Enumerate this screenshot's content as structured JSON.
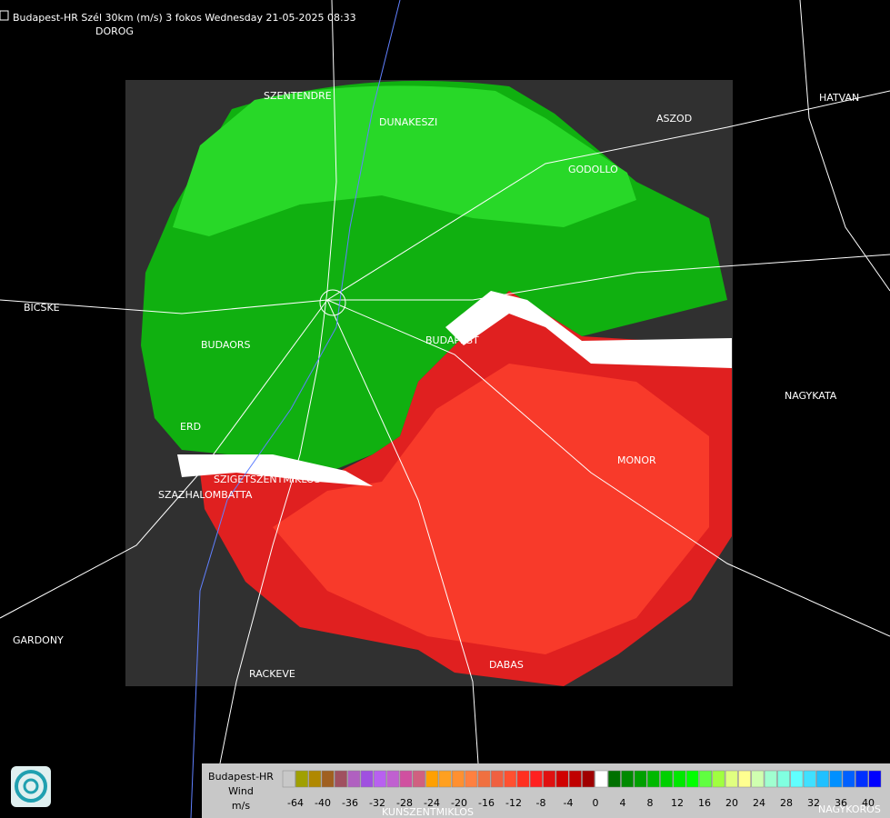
{
  "title": "Budapest-HR Szél 30km (m/s) 3 fokos Wednesday 21-05-2025 08:33",
  "places": [
    "DOROG",
    "SZENTENDRE",
    "DUNAKESZI",
    "ASZOD",
    "HATVAN",
    "GODOLLO",
    "BICSKE",
    "BUDAORS",
    "BUDAPEST",
    "NAGYKATA",
    "ERD",
    "MONOR",
    "SZIGETSZENTMIKLOS",
    "SZAZHALOMBATTA",
    "GARDONY",
    "RACKEVE",
    "DABAS",
    "KUNSZENTMIKLOS",
    "NAGYKOROS"
  ],
  "legend": {
    "station": "Budapest-HR",
    "quantity": "Wind",
    "unit": "m/s",
    "ticks": [
      -64,
      -40,
      -36,
      -32,
      -28,
      -24,
      -20,
      -16,
      -12,
      -8,
      -4,
      0,
      4,
      8,
      12,
      16,
      20,
      24,
      28,
      32,
      36,
      40
    ],
    "colors": [
      "#c8c8c8",
      "#a0a000",
      "#b08800",
      "#a06020",
      "#a05060",
      "#b060c0",
      "#a050e0",
      "#b860f0",
      "#c060d0",
      "#d050a0",
      "#d06080",
      "#ffa000",
      "#ffa020",
      "#ff9030",
      "#ff8040",
      "#f07040",
      "#f06040",
      "#ff5030",
      "#ff3020",
      "#ff2020",
      "#e01010",
      "#d00000",
      "#c00000",
      "#a00000",
      "#ffffff",
      "#007000",
      "#008a00",
      "#00a000",
      "#00b800",
      "#00d000",
      "#00e800",
      "#00ff00",
      "#60ff40",
      "#a0ff40",
      "#e0ff80",
      "#ffff90",
      "#d0ffb0",
      "#a0ffd0",
      "#80ffe0",
      "#60ffff",
      "#40e0ff",
      "#20c0ff",
      "#0090ff",
      "#0060ff",
      "#0030ff",
      "#0000ff"
    ]
  }
}
